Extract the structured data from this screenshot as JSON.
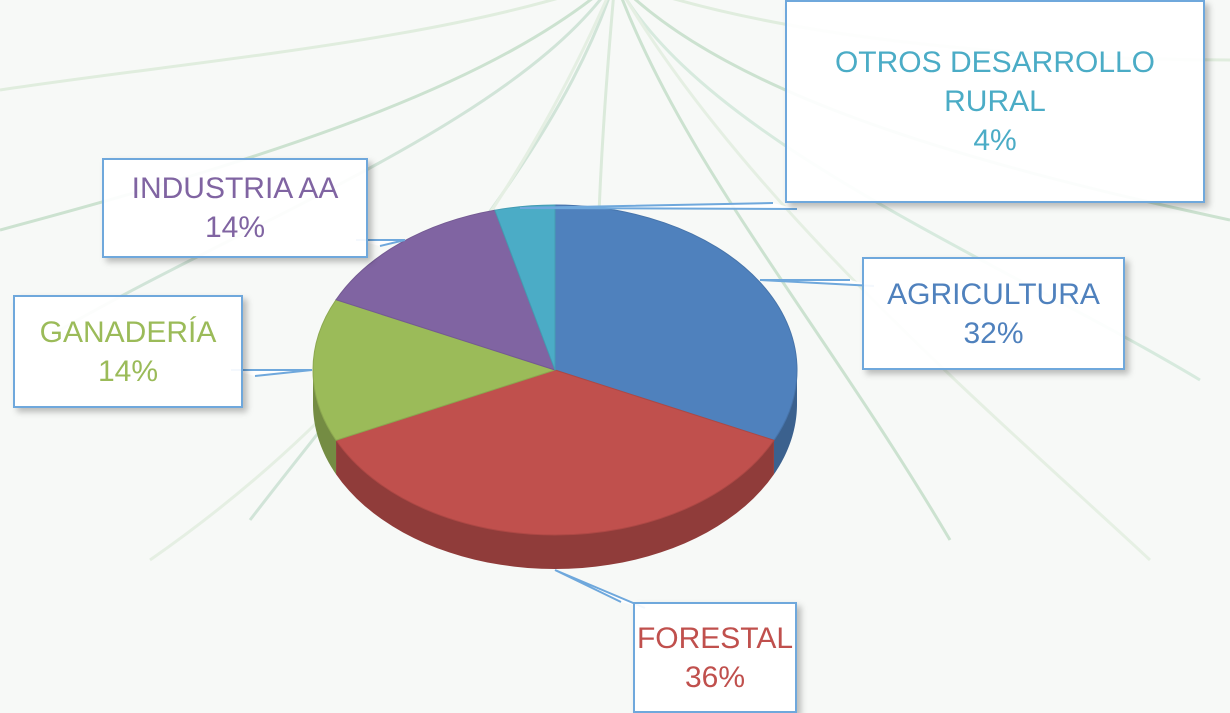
{
  "chart_data": {
    "type": "pie",
    "categories": [
      "AGRICULTURA",
      "FORESTAL",
      "GANADERÍA",
      "INDUSTRIA AA",
      "OTROS DESARROLLO RURAL"
    ],
    "values": [
      32,
      36,
      14,
      14,
      4
    ],
    "value_labels": [
      "32%",
      "36%",
      "14%",
      "14%",
      "4%"
    ],
    "colors": [
      "#4f81bd",
      "#c0504d",
      "#9bbb59",
      "#8064a2",
      "#4bacc6"
    ],
    "three_d": true
  }
}
